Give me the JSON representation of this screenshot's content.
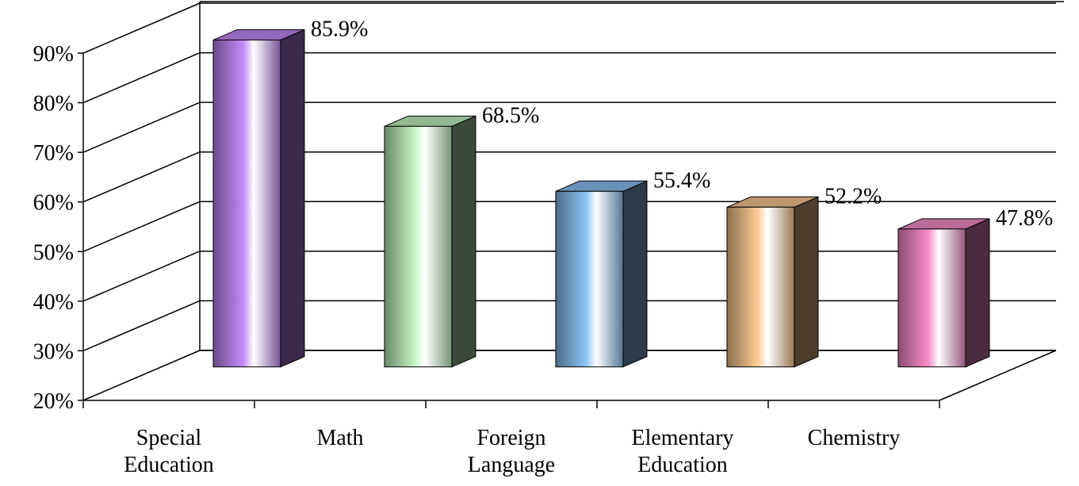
{
  "chart_data": {
    "type": "bar3d",
    "categories": [
      "Special Education",
      "Math",
      "Foreign Language",
      "Elementary Education",
      "Chemistry"
    ],
    "values": [
      85.9,
      68.5,
      55.4,
      52.2,
      47.8
    ],
    "value_labels": [
      "85.9%",
      "68.5%",
      "55.4%",
      "52.2%",
      "47.8%"
    ],
    "colors": [
      "#c58af9",
      "#c4f6c4",
      "#8cc4f6",
      "#fcca92",
      "#f98ecb"
    ],
    "ylim": [
      20,
      90
    ],
    "yticks": [
      {
        "value": 20,
        "label": "20%"
      },
      {
        "value": 30,
        "label": "30%"
      },
      {
        "value": 40,
        "label": "40%"
      },
      {
        "value": 50,
        "label": "50%"
      },
      {
        "value": 60,
        "label": "60%"
      },
      {
        "value": 70,
        "label": "70%"
      },
      {
        "value": 80,
        "label": "80%"
      },
      {
        "value": 90,
        "label": "90%"
      }
    ],
    "grid": true
  }
}
